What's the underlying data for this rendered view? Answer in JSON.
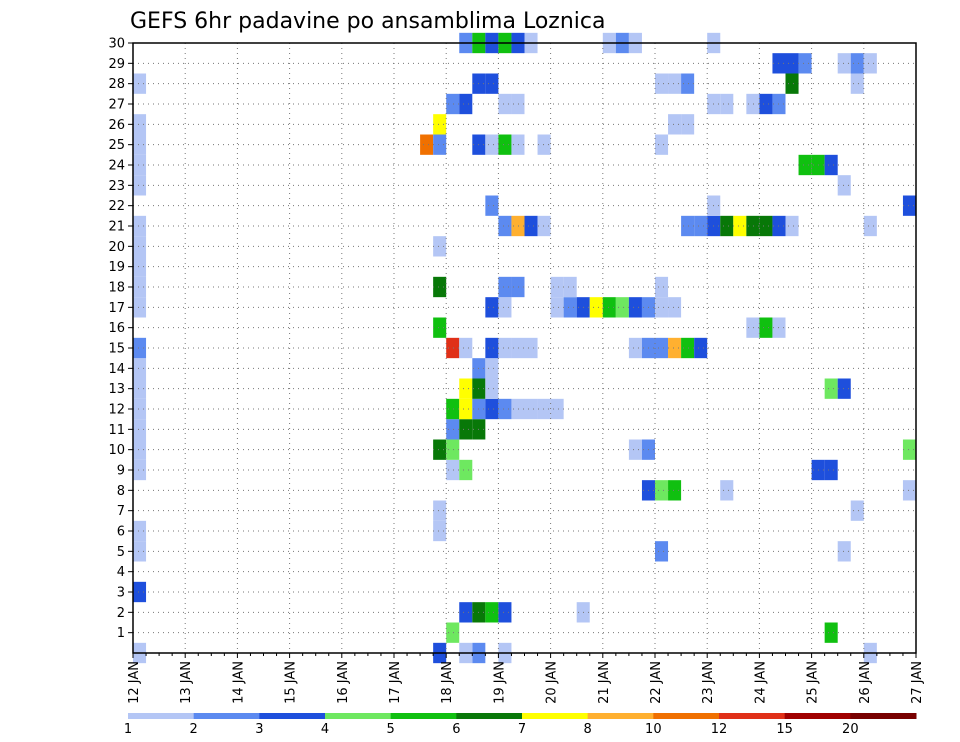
{
  "chart_data": {
    "type": "heatmap",
    "title": "GEFS 6hr padavine po ansamblima Loznica",
    "xlabel": "",
    "ylabel": "",
    "x_ticks": [
      "12 JAN",
      "13 JAN",
      "14 JAN",
      "15 JAN",
      "16 JAN",
      "17 JAN",
      "18 JAN",
      "19 JAN",
      "20 JAN",
      "21 JAN",
      "22 JAN",
      "23 JAN",
      "24 JAN",
      "25 JAN",
      "26 JAN",
      "27 JAN"
    ],
    "y_ticks": [
      "1",
      "2",
      "3",
      "4",
      "5",
      "6",
      "7",
      "8",
      "9",
      "10",
      "11",
      "12",
      "13",
      "14",
      "15",
      "16",
      "17",
      "18",
      "19",
      "20",
      "21",
      "22",
      "23",
      "24",
      "25",
      "26",
      "27",
      "28",
      "29",
      "30"
    ],
    "x_range_steps": [
      0,
      60
    ],
    "y_range_members": [
      0,
      30
    ],
    "grid": true,
    "legend_placement": "bottom",
    "legend": {
      "labels": [
        "1",
        "2",
        "3",
        "4",
        "5",
        "6",
        "7",
        "8",
        "10",
        "12",
        "15",
        "20"
      ],
      "colors": [
        "#b4c6f5",
        "#5c8af0",
        "#1e4fdc",
        "#6ee860",
        "#10c010",
        "#087808",
        "#ffff00",
        "#ffb030",
        "#f07000",
        "#e03018",
        "#a00000",
        "#780000"
      ]
    },
    "cell_values": {
      "1": 1,
      "2": 2,
      "3": 3,
      "4": 4,
      "5": 5,
      "6": 6,
      "7": 7,
      "8": 8,
      "10": 10,
      "12": 12,
      "15": 15,
      "20": 20
    },
    "cells": [
      {
        "m": 0,
        "t": 0,
        "v": 1
      },
      {
        "m": 0,
        "t": 23,
        "v": 3
      },
      {
        "m": 0,
        "t": 26,
        "v": 2
      },
      {
        "m": 0,
        "t": 28,
        "v": 1
      },
      {
        "m": 0,
        "t": 56,
        "v": 1
      },
      {
        "m": 0,
        "t": 25,
        "v": 1
      },
      {
        "m": 1,
        "t": 24,
        "v": 4
      },
      {
        "m": 1,
        "t": 53,
        "v": 5
      },
      {
        "m": 2,
        "t": 25,
        "v": 3
      },
      {
        "m": 2,
        "t": 26,
        "v": 6
      },
      {
        "m": 2,
        "t": 27,
        "v": 5
      },
      {
        "m": 2,
        "t": 28,
        "v": 3
      },
      {
        "m": 2,
        "t": 34,
        "v": 1
      },
      {
        "m": 3,
        "t": 0,
        "v": 3
      },
      {
        "m": 5,
        "t": 0,
        "v": 1
      },
      {
        "m": 5,
        "t": 40,
        "v": 2
      },
      {
        "m": 5,
        "t": 54,
        "v": 1
      },
      {
        "m": 6,
        "t": 0,
        "v": 1
      },
      {
        "m": 6,
        "t": 23,
        "v": 1
      },
      {
        "m": 7,
        "t": 23,
        "v": 1
      },
      {
        "m": 7,
        "t": 55,
        "v": 1
      },
      {
        "m": 8,
        "t": 39,
        "v": 3
      },
      {
        "m": 8,
        "t": 40,
        "v": 4
      },
      {
        "m": 8,
        "t": 41,
        "v": 5
      },
      {
        "m": 8,
        "t": 45,
        "v": 1
      },
      {
        "m": 8,
        "t": 59,
        "v": 1
      },
      {
        "m": 9,
        "t": 0,
        "v": 1
      },
      {
        "m": 9,
        "t": 24,
        "v": 1
      },
      {
        "m": 9,
        "t": 25,
        "v": 4
      },
      {
        "m": 9,
        "t": 52,
        "v": 3
      },
      {
        "m": 9,
        "t": 53,
        "v": 3
      },
      {
        "m": 10,
        "t": 0,
        "v": 1
      },
      {
        "m": 10,
        "t": 23,
        "v": 6
      },
      {
        "m": 10,
        "t": 24,
        "v": 4
      },
      {
        "m": 10,
        "t": 38,
        "v": 1
      },
      {
        "m": 10,
        "t": 39,
        "v": 2
      },
      {
        "m": 10,
        "t": 59,
        "v": 4
      },
      {
        "m": 11,
        "t": 0,
        "v": 1
      },
      {
        "m": 11,
        "t": 24,
        "v": 2
      },
      {
        "m": 11,
        "t": 25,
        "v": 6
      },
      {
        "m": 11,
        "t": 26,
        "v": 6
      },
      {
        "m": 12,
        "t": 0,
        "v": 1
      },
      {
        "m": 12,
        "t": 24,
        "v": 5
      },
      {
        "m": 12,
        "t": 25,
        "v": 7
      },
      {
        "m": 12,
        "t": 26,
        "v": 2
      },
      {
        "m": 12,
        "t": 27,
        "v": 3
      },
      {
        "m": 12,
        "t": 28,
        "v": 2
      },
      {
        "m": 12,
        "t": 29,
        "v": 1
      },
      {
        "m": 12,
        "t": 30,
        "v": 1
      },
      {
        "m": 12,
        "t": 31,
        "v": 1
      },
      {
        "m": 12,
        "t": 32,
        "v": 1
      },
      {
        "m": 13,
        "t": 0,
        "v": 1
      },
      {
        "m": 13,
        "t": 25,
        "v": 7
      },
      {
        "m": 13,
        "t": 26,
        "v": 6
      },
      {
        "m": 13,
        "t": 27,
        "v": 1
      },
      {
        "m": 13,
        "t": 53,
        "v": 4
      },
      {
        "m": 13,
        "t": 54,
        "v": 3
      },
      {
        "m": 14,
        "t": 0,
        "v": 1
      },
      {
        "m": 14,
        "t": 26,
        "v": 2
      },
      {
        "m": 14,
        "t": 27,
        "v": 1
      },
      {
        "m": 15,
        "t": 0,
        "v": 2
      },
      {
        "m": 15,
        "t": 24,
        "v": 12
      },
      {
        "m": 15,
        "t": 25,
        "v": 1
      },
      {
        "m": 15,
        "t": 27,
        "v": 3
      },
      {
        "m": 15,
        "t": 28,
        "v": 1
      },
      {
        "m": 15,
        "t": 29,
        "v": 1
      },
      {
        "m": 15,
        "t": 30,
        "v": 1
      },
      {
        "m": 15,
        "t": 38,
        "v": 1
      },
      {
        "m": 15,
        "t": 39,
        "v": 2
      },
      {
        "m": 15,
        "t": 40,
        "v": 2
      },
      {
        "m": 15,
        "t": 41,
        "v": 8
      },
      {
        "m": 15,
        "t": 42,
        "v": 5
      },
      {
        "m": 15,
        "t": 43,
        "v": 3
      },
      {
        "m": 16,
        "t": 23,
        "v": 5
      },
      {
        "m": 16,
        "t": 47,
        "v": 1
      },
      {
        "m": 16,
        "t": 48,
        "v": 5
      },
      {
        "m": 16,
        "t": 49,
        "v": 1
      },
      {
        "m": 17,
        "t": 0,
        "v": 1
      },
      {
        "m": 17,
        "t": 27,
        "v": 3
      },
      {
        "m": 17,
        "t": 28,
        "v": 1
      },
      {
        "m": 17,
        "t": 32,
        "v": 1
      },
      {
        "m": 17,
        "t": 33,
        "v": 2
      },
      {
        "m": 17,
        "t": 34,
        "v": 3
      },
      {
        "m": 17,
        "t": 35,
        "v": 7
      },
      {
        "m": 17,
        "t": 36,
        "v": 5
      },
      {
        "m": 17,
        "t": 37,
        "v": 4
      },
      {
        "m": 17,
        "t": 38,
        "v": 3
      },
      {
        "m": 17,
        "t": 39,
        "v": 2
      },
      {
        "m": 17,
        "t": 40,
        "v": 1
      },
      {
        "m": 17,
        "t": 41,
        "v": 1
      },
      {
        "m": 18,
        "t": 0,
        "v": 1
      },
      {
        "m": 18,
        "t": 23,
        "v": 6
      },
      {
        "m": 18,
        "t": 28,
        "v": 2
      },
      {
        "m": 18,
        "t": 29,
        "v": 2
      },
      {
        "m": 18,
        "t": 32,
        "v": 1
      },
      {
        "m": 18,
        "t": 33,
        "v": 1
      },
      {
        "m": 18,
        "t": 40,
        "v": 1
      },
      {
        "m": 19,
        "t": 0,
        "v": 1
      },
      {
        "m": 20,
        "t": 0,
        "v": 1
      },
      {
        "m": 20,
        "t": 23,
        "v": 1
      },
      {
        "m": 21,
        "t": 0,
        "v": 1
      },
      {
        "m": 21,
        "t": 28,
        "v": 2
      },
      {
        "m": 21,
        "t": 29,
        "v": 8
      },
      {
        "m": 21,
        "t": 30,
        "v": 3
      },
      {
        "m": 21,
        "t": 31,
        "v": 1
      },
      {
        "m": 21,
        "t": 42,
        "v": 2
      },
      {
        "m": 21,
        "t": 43,
        "v": 2
      },
      {
        "m": 21,
        "t": 44,
        "v": 3
      },
      {
        "m": 21,
        "t": 45,
        "v": 6
      },
      {
        "m": 21,
        "t": 46,
        "v": 7
      },
      {
        "m": 21,
        "t": 47,
        "v": 6
      },
      {
        "m": 21,
        "t": 48,
        "v": 6
      },
      {
        "m": 21,
        "t": 49,
        "v": 3
      },
      {
        "m": 21,
        "t": 50,
        "v": 1
      },
      {
        "m": 21,
        "t": 56,
        "v": 1
      },
      {
        "m": 22,
        "t": 27,
        "v": 2
      },
      {
        "m": 22,
        "t": 44,
        "v": 1
      },
      {
        "m": 22,
        "t": 59,
        "v": 3
      },
      {
        "m": 23,
        "t": 0,
        "v": 1
      },
      {
        "m": 23,
        "t": 54,
        "v": 1
      },
      {
        "m": 24,
        "t": 0,
        "v": 1
      },
      {
        "m": 24,
        "t": 51,
        "v": 5
      },
      {
        "m": 24,
        "t": 52,
        "v": 5
      },
      {
        "m": 24,
        "t": 53,
        "v": 3
      },
      {
        "m": 25,
        "t": 0,
        "v": 1
      },
      {
        "m": 25,
        "t": 22,
        "v": 10
      },
      {
        "m": 25,
        "t": 23,
        "v": 2
      },
      {
        "m": 25,
        "t": 26,
        "v": 3
      },
      {
        "m": 25,
        "t": 27,
        "v": 1
      },
      {
        "m": 25,
        "t": 28,
        "v": 5
      },
      {
        "m": 25,
        "t": 29,
        "v": 1
      },
      {
        "m": 25,
        "t": 31,
        "v": 1
      },
      {
        "m": 25,
        "t": 40,
        "v": 1
      },
      {
        "m": 26,
        "t": 0,
        "v": 1
      },
      {
        "m": 26,
        "t": 23,
        "v": 7
      },
      {
        "m": 26,
        "t": 41,
        "v": 1
      },
      {
        "m": 26,
        "t": 42,
        "v": 1
      },
      {
        "m": 27,
        "t": 24,
        "v": 2
      },
      {
        "m": 27,
        "t": 25,
        "v": 3
      },
      {
        "m": 27,
        "t": 28,
        "v": 1
      },
      {
        "m": 27,
        "t": 29,
        "v": 1
      },
      {
        "m": 27,
        "t": 44,
        "v": 1
      },
      {
        "m": 27,
        "t": 45,
        "v": 1
      },
      {
        "m": 27,
        "t": 47,
        "v": 1
      },
      {
        "m": 27,
        "t": 48,
        "v": 3
      },
      {
        "m": 27,
        "t": 49,
        "v": 2
      },
      {
        "m": 28,
        "t": 0,
        "v": 1
      },
      {
        "m": 28,
        "t": 26,
        "v": 3
      },
      {
        "m": 28,
        "t": 27,
        "v": 3
      },
      {
        "m": 28,
        "t": 40,
        "v": 1
      },
      {
        "m": 28,
        "t": 41,
        "v": 1
      },
      {
        "m": 28,
        "t": 42,
        "v": 2
      },
      {
        "m": 28,
        "t": 50,
        "v": 6
      },
      {
        "m": 28,
        "t": 55,
        "v": 1
      },
      {
        "m": 29,
        "t": 49,
        "v": 3
      },
      {
        "m": 29,
        "t": 50,
        "v": 3
      },
      {
        "m": 29,
        "t": 51,
        "v": 2
      },
      {
        "m": 29,
        "t": 54,
        "v": 1
      },
      {
        "m": 29,
        "t": 55,
        "v": 2
      },
      {
        "m": 29,
        "t": 56,
        "v": 1
      },
      {
        "m": 30,
        "t": 25,
        "v": 2
      },
      {
        "m": 30,
        "t": 26,
        "v": 5
      },
      {
        "m": 30,
        "t": 27,
        "v": 3
      },
      {
        "m": 30,
        "t": 28,
        "v": 5
      },
      {
        "m": 30,
        "t": 29,
        "v": 3
      },
      {
        "m": 30,
        "t": 30,
        "v": 1
      },
      {
        "m": 30,
        "t": 36,
        "v": 1
      },
      {
        "m": 30,
        "t": 37,
        "v": 2
      },
      {
        "m": 30,
        "t": 38,
        "v": 1
      },
      {
        "m": 30,
        "t": 44,
        "v": 1
      }
    ]
  }
}
